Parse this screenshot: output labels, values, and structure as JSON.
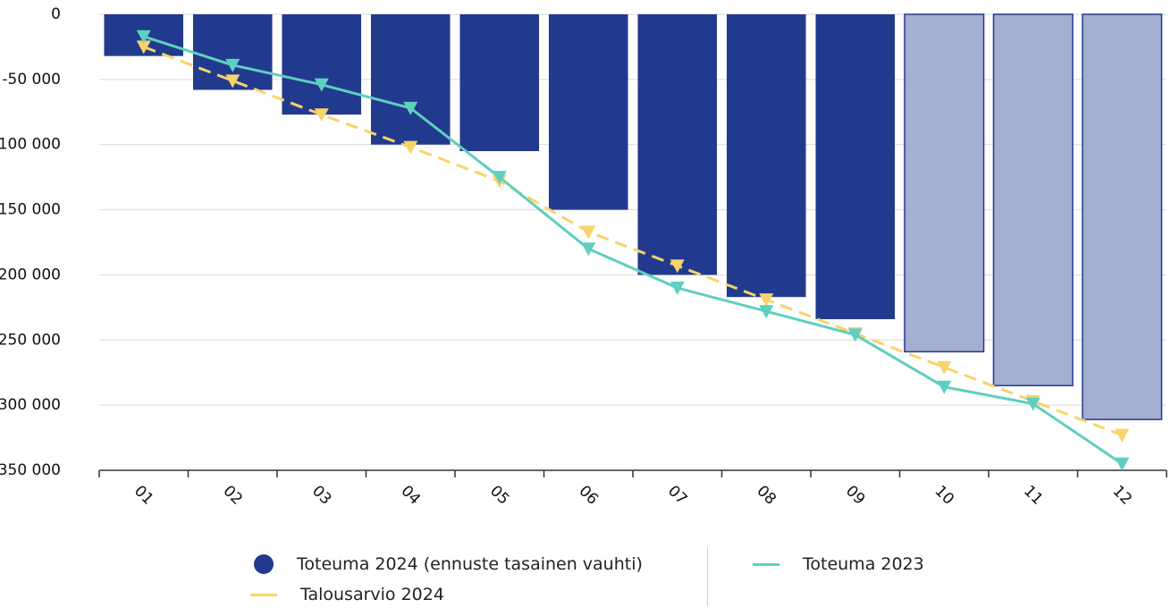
{
  "colors": {
    "bar_actual": "#223a8e",
    "bar_forecast": "#a4aed0",
    "bar_forecast_border": "#223a8e",
    "line_2023": "#5fcfbf",
    "line_budget": "#f7d46a",
    "grid": "#d9d9d9",
    "axis": "#333333"
  },
  "chart_data": {
    "type": "bar",
    "categories": [
      "01",
      "02",
      "03",
      "04",
      "05",
      "06",
      "07",
      "08",
      "09",
      "10",
      "11",
      "12"
    ],
    "ylim": [
      -350000,
      0
    ],
    "y_ticks": [
      0,
      -50000,
      -100000,
      -150000,
      -200000,
      -250000,
      -300000,
      -350000
    ],
    "y_tick_labels": [
      "0",
      "-50 000",
      "-100 000",
      "-150 000",
      "-200 000",
      "-250 000",
      "-300 000",
      "-350 000"
    ],
    "grid": true,
    "legend_position": "bottom",
    "series": [
      {
        "name": "Toteuma 2024 (ennuste tasainen vauhti)",
        "type": "bar",
        "values": [
          -32000,
          -58000,
          -77000,
          -100000,
          -105000,
          -150000,
          -200000,
          -217000,
          -234000,
          -259000,
          -285000,
          -311000
        ],
        "forecast_from_index": 9
      },
      {
        "name": "Talousarvio 2024",
        "type": "line",
        "style": "dashed",
        "marker": "down-triangle-icon",
        "values": [
          -25000,
          -51000,
          -77000,
          -102000,
          -128000,
          -167000,
          -193000,
          -219000,
          -245000,
          -271000,
          -297000,
          -323000
        ]
      },
      {
        "name": "Toteuma 2023",
        "type": "line",
        "style": "solid",
        "marker": "down-triangle-icon",
        "values": [
          -17000,
          -39000,
          -54000,
          -72000,
          -125000,
          -180000,
          -210000,
          -228000,
          -246000,
          -286000,
          -299000,
          -345000
        ]
      }
    ]
  },
  "legend": {
    "items": [
      {
        "label": "Toteuma 2024 (ennuste tasainen vauhti)",
        "icon": "circle-icon"
      },
      {
        "label": "Toteuma 2023",
        "icon": "line-icon"
      },
      {
        "label": "Talousarvio 2024",
        "icon": "line-icon"
      }
    ]
  }
}
